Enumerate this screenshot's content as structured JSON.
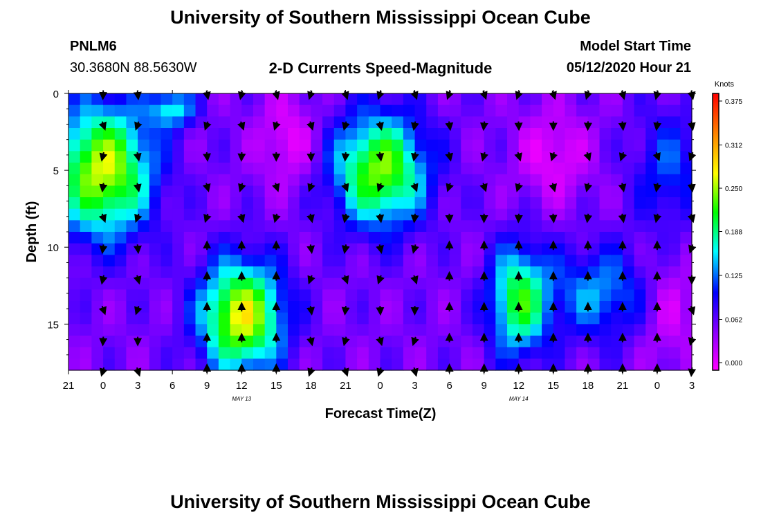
{
  "header": {
    "title": "University of Southern Mississippi Ocean Cube",
    "station": "PNLM6",
    "coords": "30.3680N 88.5630W",
    "subtitle": "2-D Currents Speed-Magnitude",
    "model_label": "Model Start Time",
    "model_time": "05/12/2020 Hour 21"
  },
  "footer": {
    "title": "University of Southern Mississippi Ocean Cube"
  },
  "colors": {
    "scale": [
      "#ff00ff",
      "#8800ff",
      "#0000ff",
      "#00ffff",
      "#00ff00",
      "#ffff00",
      "#ff8800",
      "#ff0000"
    ]
  },
  "chart_data": {
    "type": "heatmap",
    "title": "2-D Currents Speed-Magnitude",
    "xlabel": "Forecast Time(Z)",
    "ylabel": "Depth (ft)",
    "x_tick_labels": [
      "21",
      "0",
      "3",
      "6",
      "9",
      "12",
      "15",
      "18",
      "21",
      "0",
      "3",
      "6",
      "9",
      "12",
      "15",
      "18",
      "21",
      "0",
      "3"
    ],
    "x_day_labels": [
      {
        "label": "MAY  13",
        "tick_index": 5
      },
      {
        "label": "MAY  14",
        "tick_index": 13
      }
    ],
    "y_tick_labels": [
      "0",
      "5",
      "10",
      "15"
    ],
    "y_tick_values": [
      0,
      5,
      10,
      15
    ],
    "ylim": [
      0,
      18
    ],
    "xlim_hours": [
      0,
      54
    ],
    "colorbar": {
      "unit": "Knots",
      "min": 0.0,
      "max": 0.375,
      "tick_labels": [
        "0.375",
        "0.312",
        "0.250",
        "0.188",
        "0.125",
        "0.062",
        "0.000"
      ],
      "tick_values": [
        0.375,
        0.312,
        0.25,
        0.188,
        0.125,
        0.062,
        0.0
      ]
    },
    "arrow_times_hours": [
      3,
      6,
      12,
      15,
      18,
      21,
      24,
      27,
      30,
      33,
      36,
      39,
      42,
      45,
      48,
      51,
      54
    ],
    "arrow_depths_ft": [
      0,
      2,
      4,
      6,
      8,
      10,
      12,
      14,
      16,
      18
    ],
    "field_model": "magnitude in knots approximated per (hour, depth) by the speed regions visible in the plot"
  }
}
